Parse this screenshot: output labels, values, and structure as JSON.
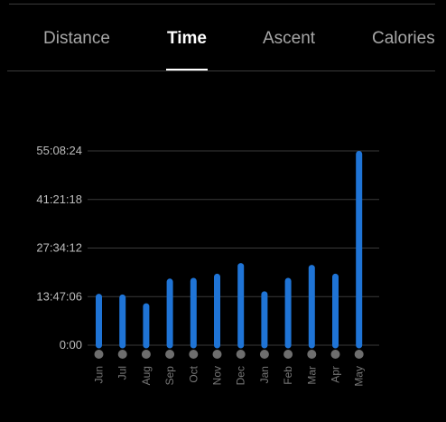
{
  "tabs": [
    {
      "label": "Distance",
      "active": false
    },
    {
      "label": "Time",
      "active": true
    },
    {
      "label": "Ascent",
      "active": false
    },
    {
      "label": "Calories",
      "active": false
    }
  ],
  "colors": {
    "bar": "#1f74d6",
    "dot": "#6e6e6e",
    "grid": "#3a3a3a"
  },
  "chart_data": {
    "type": "bar",
    "title": "",
    "xlabel": "",
    "ylabel": "",
    "categories": [
      "Jun",
      "Jul",
      "Aug",
      "Sep",
      "Oct",
      "Nov",
      "Dec",
      "Jan",
      "Feb",
      "Mar",
      "Apr",
      "May"
    ],
    "values_hours": [
      14.6,
      14.4,
      11.9,
      18.9,
      19.1,
      20.3,
      23.3,
      15.3,
      19.1,
      22.8,
      20.3,
      55.14
    ],
    "yticks": [
      "0:00",
      "13:47:06",
      "27:34:12",
      "41:21:18",
      "55:08:24"
    ],
    "ylim_hours": [
      0,
      55.14
    ],
    "grid": true
  }
}
